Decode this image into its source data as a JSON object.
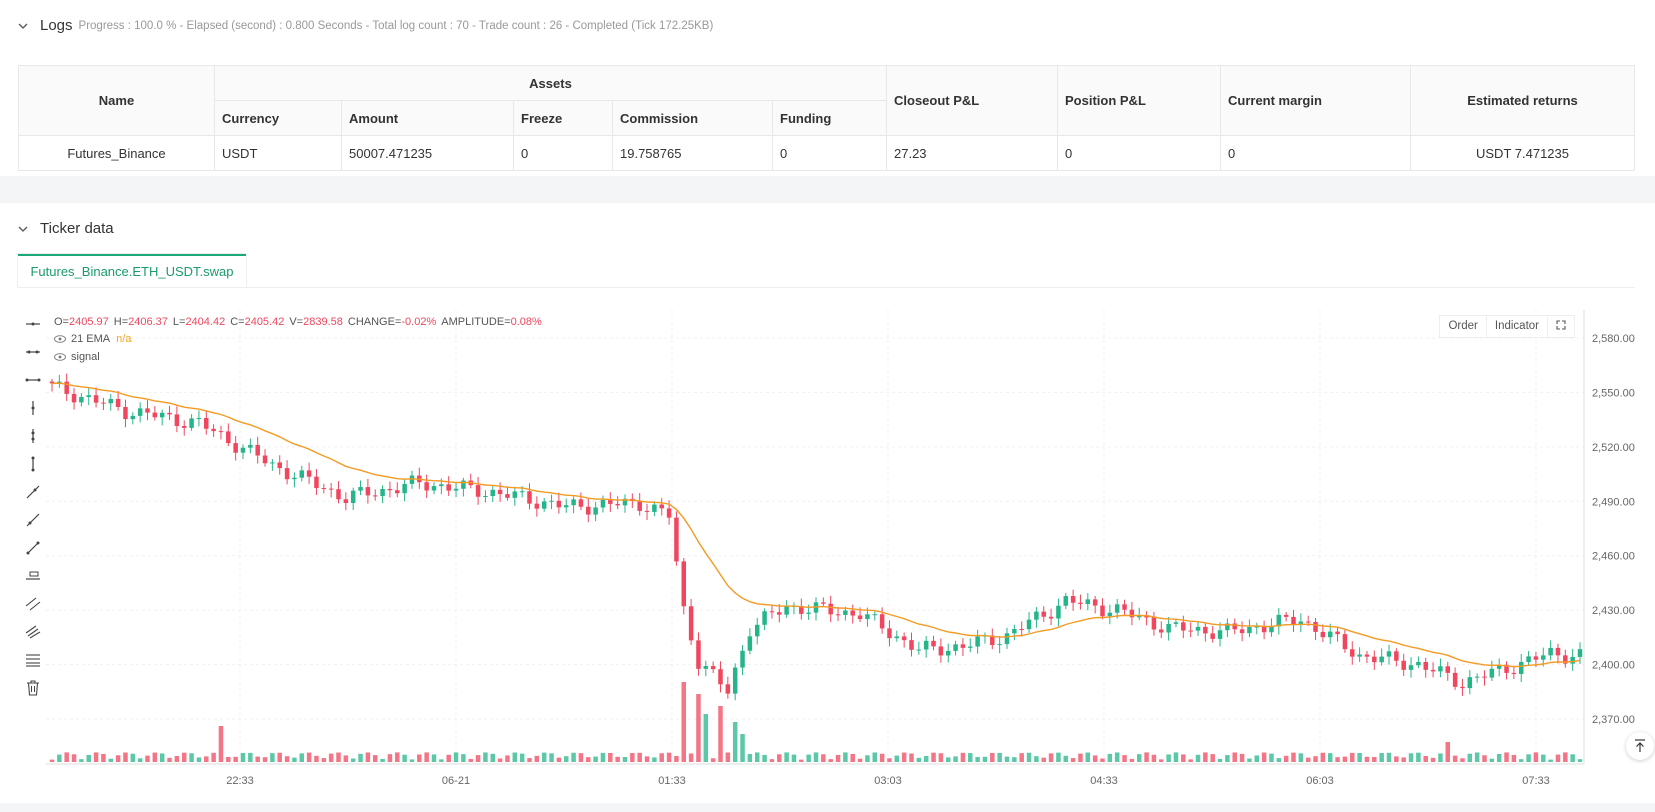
{
  "logs": {
    "title": "Logs",
    "progress": "Progress : 100.0 % - Elapsed (second) : 0.800  Seconds - Total log count : 70 - Trade count : 26 - Completed (Tick 172.25KB)"
  },
  "assets_table": {
    "headers": {
      "name": "Name",
      "assets": "Assets",
      "currency": "Currency",
      "amount": "Amount",
      "freeze": "Freeze",
      "commission": "Commission",
      "funding": "Funding",
      "closeout": "Closeout P&L",
      "position": "Position P&L",
      "margin": "Current margin",
      "returns": "Estimated returns"
    },
    "row": {
      "name": "Futures_Binance",
      "currency": "USDT",
      "amount": "50007.471235",
      "freeze": "0",
      "commission": "19.758765",
      "funding": "0",
      "closeout": "27.23",
      "position": "0",
      "margin": "0",
      "returns": "USDT 7.471235"
    }
  },
  "ticker": {
    "title": "Ticker data",
    "tab": "Futures_Binance.ETH_USDT.swap",
    "ohlc": {
      "o_label": "O=",
      "o": "2405.97",
      "h_label": "H=",
      "h": "2406.37",
      "l_label": "L=",
      "l": "2404.42",
      "c_label": "C=",
      "c": "2405.42",
      "v_label": "V=",
      "v": "2839.58",
      "change_label": "CHANGE=",
      "change": "-0.02%",
      "amp_label": "AMPLITUDE=",
      "amp": "0.08%"
    },
    "ema_label": "21 EMA",
    "ema_value": "n/a",
    "signal_label": "signal",
    "buttons": {
      "order": "Order",
      "indicator": "Indicator"
    }
  },
  "chart_data": {
    "type": "candlestick",
    "y_ticks": [
      "2,580.00",
      "2,550.00",
      "2,520.00",
      "2,490.00",
      "2,460.00",
      "2,430.00",
      "2,400.00",
      "2,370.00"
    ],
    "x_ticks": [
      "22:33",
      "06-21",
      "01:33",
      "03:03",
      "04:33",
      "06:03",
      "07:33"
    ],
    "ylim": [
      2348,
      2590
    ],
    "colors": {
      "up": "#26b58a",
      "down": "#f0475e",
      "ema": "#f59a23"
    },
    "close_keypoints": [
      [
        0,
        2553
      ],
      [
        10,
        2540
      ],
      [
        20,
        2533
      ],
      [
        30,
        2510
      ],
      [
        40,
        2492
      ],
      [
        50,
        2500
      ],
      [
        60,
        2495
      ],
      [
        70,
        2487
      ],
      [
        80,
        2489
      ],
      [
        84,
        2482
      ],
      [
        86,
        2430
      ],
      [
        88,
        2402
      ],
      [
        92,
        2385
      ],
      [
        95,
        2420
      ],
      [
        100,
        2432
      ],
      [
        110,
        2428
      ],
      [
        118,
        2408
      ],
      [
        124,
        2410
      ],
      [
        130,
        2416
      ],
      [
        138,
        2435
      ],
      [
        145,
        2430
      ],
      [
        152,
        2420
      ],
      [
        160,
        2418
      ],
      [
        170,
        2425
      ],
      [
        178,
        2405
      ],
      [
        186,
        2400
      ],
      [
        192,
        2390
      ],
      [
        198,
        2398
      ],
      [
        204,
        2406
      ],
      [
        208,
        2405
      ]
    ],
    "volume_spikes": [
      [
        23,
        0.45
      ],
      [
        86,
        1.0
      ],
      [
        88,
        0.85
      ],
      [
        89,
        0.6
      ],
      [
        91,
        0.7
      ],
      [
        93,
        0.5
      ],
      [
        94,
        0.35
      ],
      [
        190,
        0.25
      ]
    ]
  },
  "icons": [
    "minus-icon",
    "line-icon",
    "ray-icon",
    "vertical-icon",
    "arrow-icon",
    "pitchfork-icon",
    "trash-icon",
    "fullscreen-icon",
    "scroll-top-icon"
  ]
}
